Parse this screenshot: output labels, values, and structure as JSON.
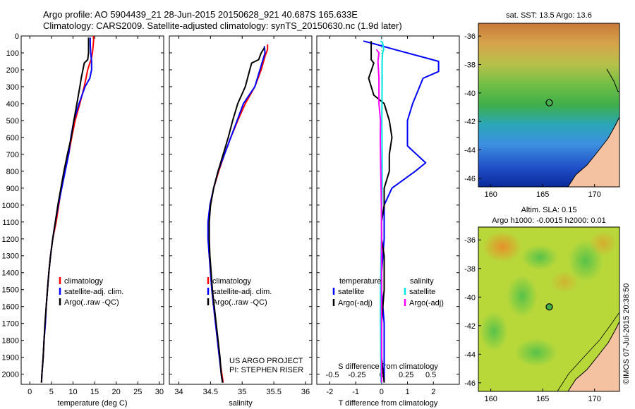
{
  "header": {
    "line1": "Argo profile: AO 5904439_21 28-Jun-2015 20150628_921 40.687S 165.633E",
    "line2": "Climatology: CARS2009. Satellite-adjusted climatology: synTS_20150630.nc (1.9d later)"
  },
  "colors": {
    "climatology": "#ff0000",
    "satellite": "#0000ff",
    "argo": "#000000",
    "sat_salinity": "#00e5e5",
    "argo_salinity": "#ff00ff"
  },
  "depth_axis": {
    "ticks": [
      0,
      100,
      200,
      300,
      400,
      500,
      600,
      700,
      800,
      900,
      1000,
      1100,
      1200,
      1300,
      1400,
      1500,
      1600,
      1700,
      1800,
      1900,
      2000
    ],
    "range": [
      0,
      2060
    ]
  },
  "chart_data": [
    {
      "id": "temperature",
      "type": "line",
      "xlabel": "temperature (deg C)",
      "xlim": [
        -2,
        31
      ],
      "xticks": [
        0,
        5,
        10,
        15,
        20,
        25,
        30
      ],
      "ylim": [
        0,
        2060
      ],
      "legend": [
        "climatology",
        "satellite-adj. clim.",
        "Argo(..raw -QC)"
      ],
      "series": [
        {
          "name": "climatology",
          "color": "#ff0000",
          "points": [
            [
              14.7,
              0
            ],
            [
              14.8,
              20
            ],
            [
              14.7,
              50
            ],
            [
              14.5,
              100
            ],
            [
              14.2,
              140
            ],
            [
              13.9,
              160
            ],
            [
              13.4,
              200
            ],
            [
              12.6,
              300
            ],
            [
              11.6,
              400
            ],
            [
              10.5,
              500
            ],
            [
              9.7,
              600
            ],
            [
              9,
              700
            ],
            [
              8.1,
              800
            ],
            [
              7.3,
              900
            ],
            [
              6.7,
              1000
            ],
            [
              6.1,
              1100
            ],
            [
              5.3,
              1200
            ],
            [
              4.8,
              1300
            ],
            [
              4.4,
              1400
            ],
            [
              4.1,
              1500
            ],
            [
              3.8,
              1600
            ],
            [
              3.6,
              1700
            ],
            [
              3.3,
              1800
            ],
            [
              3.1,
              1900
            ],
            [
              2.8,
              2000
            ],
            [
              2.7,
              2050
            ]
          ]
        },
        {
          "name": "satellite-adj. clim.",
          "color": "#0000ff",
          "points": [
            [
              14,
              10
            ],
            [
              14,
              50
            ],
            [
              14.1,
              100
            ],
            [
              14.3,
              150
            ],
            [
              14.3,
              200
            ],
            [
              13.9,
              250
            ],
            [
              12.8,
              300
            ],
            [
              11.4,
              400
            ],
            [
              10.2,
              500
            ],
            [
              9.5,
              600
            ],
            [
              9,
              700
            ],
            [
              8.2,
              800
            ],
            [
              7.4,
              900
            ],
            [
              6.6,
              1000
            ],
            [
              5.9,
              1100
            ],
            [
              5.3,
              1200
            ],
            [
              4.8,
              1300
            ],
            [
              4.4,
              1400
            ],
            [
              4.1,
              1500
            ],
            [
              3.8,
              1600
            ],
            [
              3.6,
              1700
            ],
            [
              3.3,
              1800
            ],
            [
              3.1,
              1900
            ],
            [
              2.8,
              2000
            ],
            [
              2.7,
              2050
            ]
          ]
        },
        {
          "name": "Argo(..raw -QC)",
          "color": "#000000",
          "points": [
            [
              13.6,
              10
            ],
            [
              13.6,
              100
            ],
            [
              13.4,
              140
            ],
            [
              12.6,
              160
            ],
            [
              12.3,
              200
            ],
            [
              11.9,
              250
            ],
            [
              11.6,
              300
            ],
            [
              10.9,
              400
            ],
            [
              10.2,
              500
            ],
            [
              9.6,
              600
            ],
            [
              8.7,
              700
            ],
            [
              7.9,
              800
            ],
            [
              7.2,
              900
            ],
            [
              6.5,
              1000
            ],
            [
              5.9,
              1100
            ],
            [
              5.3,
              1200
            ],
            [
              4.8,
              1300
            ],
            [
              4.4,
              1400
            ],
            [
              4.1,
              1500
            ],
            [
              3.8,
              1600
            ],
            [
              3.5,
              1700
            ],
            [
              3.3,
              1800
            ],
            [
              3.1,
              1900
            ],
            [
              2.8,
              2000
            ],
            [
              2.7,
              2050
            ]
          ]
        }
      ]
    },
    {
      "id": "salinity",
      "type": "line",
      "xlabel": "salinity",
      "xlim": [
        33.85,
        36.1
      ],
      "xticks": [
        34,
        34.5,
        35,
        35.5,
        36
      ],
      "ylim": [
        0,
        2060
      ],
      "legend": [
        "climatology",
        "satellite-adj. clim.",
        "Argo(..raw -QC)"
      ],
      "annotation": [
        "US ARGO PROJECT",
        "PI: STEPHEN RISER"
      ],
      "series": [
        {
          "name": "climatology",
          "color": "#ff0000",
          "points": [
            [
              35.4,
              50
            ],
            [
              35.4,
              80
            ],
            [
              35.36,
              120
            ],
            [
              35.3,
              200
            ],
            [
              35.2,
              300
            ],
            [
              35.05,
              400
            ],
            [
              34.93,
              500
            ],
            [
              34.82,
              600
            ],
            [
              34.72,
              700
            ],
            [
              34.63,
              800
            ],
            [
              34.55,
              900
            ],
            [
              34.5,
              1000
            ],
            [
              34.47,
              1100
            ],
            [
              34.47,
              1200
            ],
            [
              34.48,
              1300
            ],
            [
              34.5,
              1400
            ],
            [
              34.52,
              1500
            ],
            [
              34.55,
              1600
            ],
            [
              34.58,
              1700
            ],
            [
              34.61,
              1800
            ],
            [
              34.64,
              1900
            ],
            [
              34.68,
              2000
            ],
            [
              34.7,
              2050
            ]
          ]
        },
        {
          "name": "satellite-adj. clim.",
          "color": "#0000ff",
          "points": [
            [
              35.35,
              60
            ],
            [
              35.36,
              100
            ],
            [
              35.32,
              150
            ],
            [
              35.28,
              200
            ],
            [
              35.2,
              300
            ],
            [
              35.02,
              400
            ],
            [
              34.92,
              500
            ],
            [
              34.82,
              600
            ],
            [
              34.72,
              700
            ],
            [
              34.62,
              800
            ],
            [
              34.55,
              900
            ],
            [
              34.49,
              1000
            ],
            [
              34.46,
              1100
            ],
            [
              34.46,
              1200
            ],
            [
              34.48,
              1300
            ],
            [
              34.5,
              1400
            ],
            [
              34.52,
              1500
            ],
            [
              34.55,
              1600
            ],
            [
              34.58,
              1700
            ],
            [
              34.61,
              1800
            ],
            [
              34.64,
              1900
            ],
            [
              34.67,
              2000
            ],
            [
              34.69,
              2050
            ]
          ]
        },
        {
          "name": "Argo(..raw -QC)",
          "color": "#000000",
          "points": [
            [
              35.35,
              70
            ],
            [
              35.3,
              100
            ],
            [
              35.26,
              140
            ],
            [
              35.15,
              160
            ],
            [
              35.12,
              200
            ],
            [
              35.05,
              300
            ],
            [
              34.93,
              400
            ],
            [
              34.85,
              500
            ],
            [
              34.78,
              600
            ],
            [
              34.7,
              700
            ],
            [
              34.62,
              800
            ],
            [
              34.55,
              900
            ],
            [
              34.5,
              1000
            ],
            [
              34.48,
              1100
            ],
            [
              34.48,
              1200
            ],
            [
              34.49,
              1300
            ],
            [
              34.51,
              1400
            ],
            [
              34.53,
              1500
            ],
            [
              34.56,
              1600
            ],
            [
              34.59,
              1700
            ],
            [
              34.62,
              1800
            ],
            [
              34.65,
              1900
            ],
            [
              34.67,
              2000
            ],
            [
              34.69,
              2050
            ]
          ]
        }
      ]
    },
    {
      "id": "difference",
      "type": "line",
      "xlabel": "T difference from climatology",
      "top_axis_label": "S difference from climatology",
      "xlim": [
        -2.5,
        3
      ],
      "xticks": [
        -2,
        -1,
        0,
        1,
        2
      ],
      "secondary_xticks": [
        "-0.5",
        "-0.25",
        "0",
        "0.25",
        "0.5"
      ],
      "ylim": [
        0,
        2060
      ],
      "legend": {
        "temperature_header": "temperature",
        "salinity_header": "salinity",
        "temperature": [
          "satellite",
          "Argo(-adj)"
        ],
        "salinity": [
          "satellite",
          "Argo(-adj)"
        ]
      },
      "series": [
        {
          "name": "temperature satellite",
          "color": "#0000ff",
          "points": [
            [
              -0.7,
              30
            ],
            [
              -0.2,
              50
            ],
            [
              0.5,
              80
            ],
            [
              2.2,
              150
            ],
            [
              2.2,
              210
            ],
            [
              1.6,
              250
            ],
            [
              1.2,
              400
            ],
            [
              1,
              500
            ],
            [
              1,
              650
            ],
            [
              1.7,
              750
            ],
            [
              1.3,
              800
            ],
            [
              0.4,
              900
            ],
            [
              0.1,
              1000
            ],
            [
              0.1,
              1200
            ],
            [
              0,
              1400
            ],
            [
              0,
              1500
            ],
            [
              0.1,
              1700
            ],
            [
              0.1,
              1900
            ],
            [
              0.1,
              2050
            ]
          ]
        },
        {
          "name": "temperature Argo(-adj)",
          "color": "#000000",
          "points": [
            [
              -0.4,
              30
            ],
            [
              -0.4,
              140
            ],
            [
              -0.3,
              160
            ],
            [
              -0.5,
              250
            ],
            [
              -0.3,
              350
            ],
            [
              0.1,
              400
            ],
            [
              0.3,
              500
            ],
            [
              0.4,
              600
            ],
            [
              0.3,
              700
            ],
            [
              0.3,
              800
            ],
            [
              0.1,
              900
            ],
            [
              0.1,
              1000
            ],
            [
              0,
              1100
            ],
            [
              0,
              1200
            ],
            [
              0.1,
              1300
            ],
            [
              0.1,
              1500
            ],
            [
              0,
              1700
            ],
            [
              0,
              1900
            ],
            [
              0.1,
              2050
            ]
          ]
        },
        {
          "name": "salinity satellite",
          "color": "#00e5e5",
          "points": [
            [
              -0.04,
              30
            ],
            [
              0.04,
              40
            ],
            [
              0.08,
              80
            ],
            [
              0.04,
              100
            ],
            [
              0.02,
              150
            ],
            [
              0.02,
              300
            ],
            [
              0.01,
              500
            ],
            [
              0.02,
              700
            ],
            [
              0.02,
              900
            ],
            [
              0,
              1100
            ],
            [
              -0.02,
              1300
            ],
            [
              -0.04,
              1500
            ],
            [
              -0.04,
              1700
            ],
            [
              -0.03,
              1900
            ],
            [
              -0.02,
              2050
            ]
          ]
        },
        {
          "name": "salinity Argo(-adj)",
          "color": "#ff00ff",
          "points": [
            [
              -0.2,
              80
            ],
            [
              -0.1,
              100
            ],
            [
              -0.14,
              150
            ],
            [
              -0.12,
              200
            ],
            [
              -0.1,
              250
            ],
            [
              -0.1,
              400
            ],
            [
              -0.04,
              500
            ],
            [
              -0.05,
              600
            ],
            [
              -0.04,
              700
            ],
            [
              -0.03,
              800
            ],
            [
              -0.02,
              900
            ],
            [
              -0.01,
              1000
            ],
            [
              0,
              1200
            ],
            [
              0,
              1400
            ],
            [
              0,
              1600
            ],
            [
              0,
              1800
            ],
            [
              0,
              2050
            ]
          ]
        }
      ]
    }
  ],
  "maps": [
    {
      "id": "sst_map",
      "title": "sat. SST: 13.5 Argo: 13.6",
      "lon_ticks": [
        160,
        165,
        170
      ],
      "lat_ticks": [
        -36,
        -38,
        -40,
        -42,
        -44,
        -46
      ],
      "lon_range": [
        158.8,
        172.4
      ],
      "lat_range": [
        -35.1,
        -46.6
      ],
      "argo_position": {
        "lon": 165.633,
        "lat": -40.687
      }
    },
    {
      "id": "sla_map",
      "title": "Altim. SLA: 0.15",
      "subtitle": "Argo h1000: -0.0015 h2000: 0.01",
      "lon_ticks": [
        160,
        165,
        170
      ],
      "lat_ticks": [
        -36,
        -38,
        -40,
        -42,
        -44,
        -46
      ],
      "lon_range": [
        158.8,
        172.4
      ],
      "lat_range": [
        -35.1,
        -46.6
      ],
      "argo_position": {
        "lon": 165.633,
        "lat": -40.687
      }
    }
  ],
  "credit": "©IMOS 07-Jul-2015 20:38:50"
}
